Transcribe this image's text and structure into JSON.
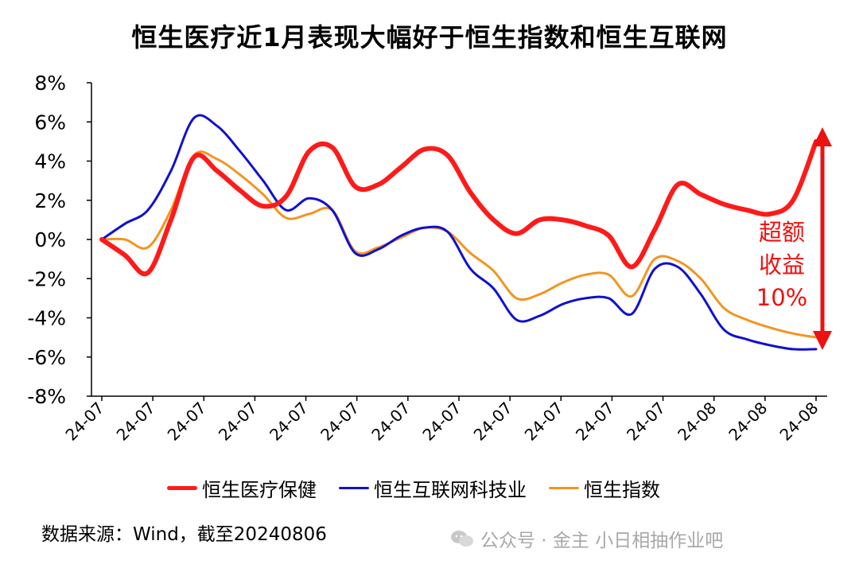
{
  "title": "恒生医疗近1月表现大幅好于恒生指数和恒生互联网",
  "source": "数据来源：Wind，截至20240806",
  "watermark": "公众号 · 金主 小日相抽作业吧",
  "chart_data": {
    "type": "line",
    "title": "恒生医疗近1月表现大幅好于恒生指数和恒生互联网",
    "ylim": [
      -8,
      8
    ],
    "yticks": [
      "8%",
      "6%",
      "4%",
      "2%",
      "0%",
      "-2%",
      "-4%",
      "-6%",
      "-8%"
    ],
    "x_tick_labels": [
      "24-07",
      "24-07",
      "24-07",
      "24-07",
      "24-07",
      "24-07",
      "24-07",
      "24-07",
      "24-07",
      "24-07",
      "24-07",
      "24-07",
      "24-08",
      "24-08",
      "24-08"
    ],
    "legend_position": "bottom",
    "series": [
      {
        "name": "恒生医疗保健",
        "color": "#ff1a1a",
        "values": [
          0,
          -0.8,
          -1.7,
          1.0,
          4.2,
          3.5,
          2.5,
          1.7,
          2.2,
          4.5,
          4.7,
          2.7,
          2.8,
          3.7,
          4.6,
          4.3,
          2.4,
          1.0,
          0.3,
          1.0,
          1.0,
          0.7,
          0.2,
          -1.4,
          0.5,
          2.8,
          2.3,
          1.8,
          1.5,
          1.3,
          2.0,
          5.0
        ]
      },
      {
        "name": "恒生互联网科技业",
        "color": "#1010d0",
        "values": [
          0,
          0.8,
          1.5,
          3.5,
          6.2,
          5.8,
          4.5,
          3.0,
          1.5,
          2.1,
          1.5,
          -0.7,
          -0.5,
          0.2,
          0.6,
          0.4,
          -1.5,
          -2.5,
          -4.1,
          -3.9,
          -3.3,
          -3.0,
          -3.0,
          -3.8,
          -1.5,
          -1.4,
          -2.8,
          -4.6,
          -5.1,
          -5.4,
          -5.6,
          -5.6
        ]
      },
      {
        "name": "恒生指数",
        "color": "#f3951f",
        "values": [
          0,
          0.0,
          -0.4,
          1.5,
          4.3,
          4.1,
          3.3,
          2.3,
          1.1,
          1.3,
          1.5,
          -0.6,
          -0.4,
          0.1,
          0.6,
          0.4,
          -0.7,
          -1.6,
          -3.0,
          -2.8,
          -2.2,
          -1.8,
          -1.8,
          -2.9,
          -1.0,
          -1.1,
          -2.0,
          -3.5,
          -4.1,
          -4.5,
          -4.8,
          -5.0
        ]
      }
    ],
    "annotation": {
      "lines": [
        "超额",
        "收益",
        "10%"
      ],
      "color": "#ee1111"
    }
  }
}
